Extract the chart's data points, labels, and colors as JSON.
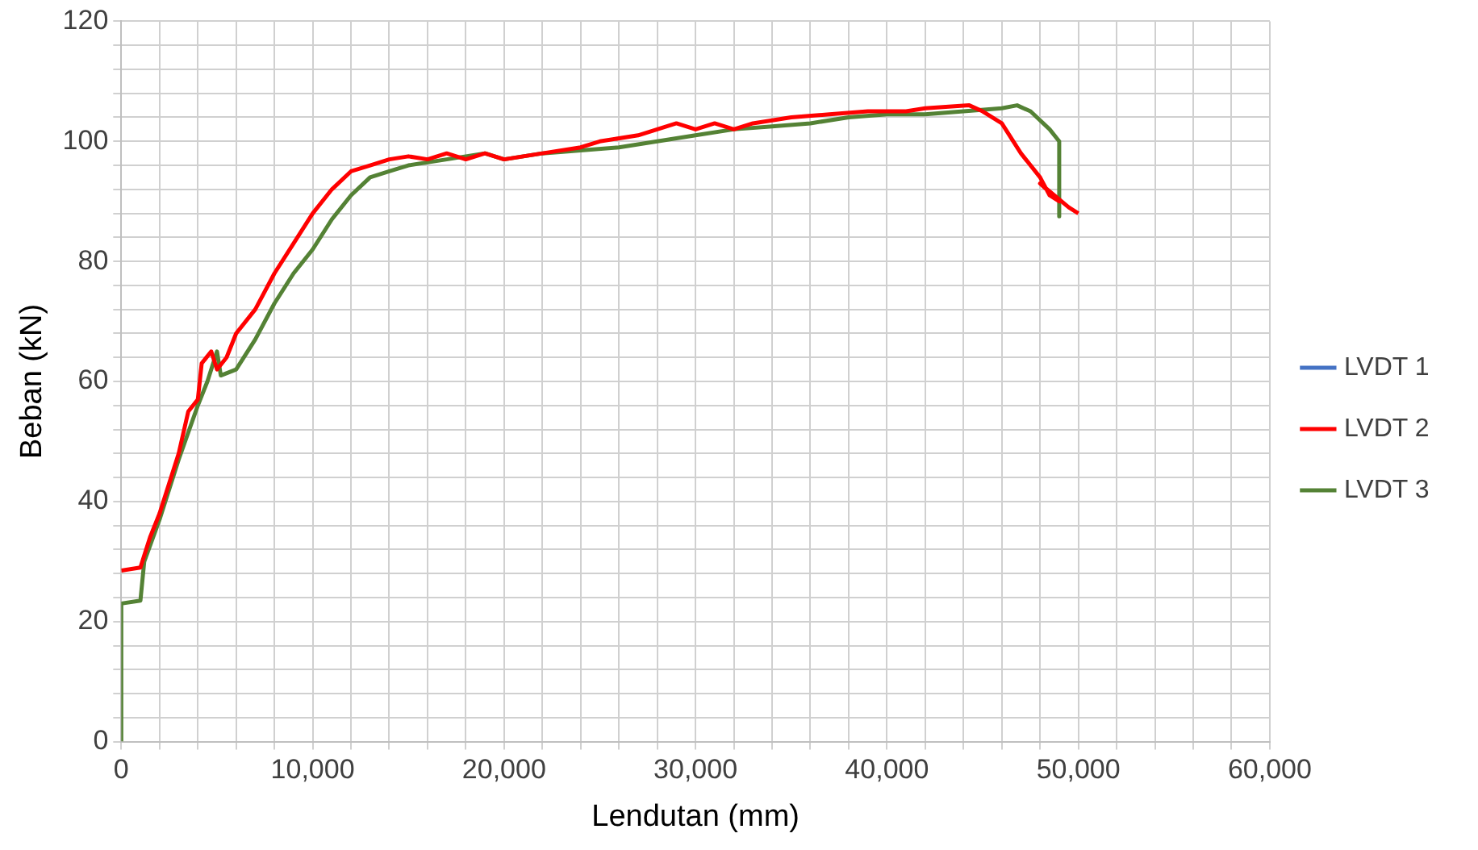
{
  "chart_data": {
    "type": "line",
    "xlabel": "Lendutan (mm)",
    "ylabel": "Beban (kN)",
    "xlim": [
      0,
      60000
    ],
    "ylim": [
      0,
      120
    ],
    "xticks": [
      {
        "value": 0,
        "label": "0"
      },
      {
        "value": 2000,
        "label": null
      },
      {
        "value": 4000,
        "label": null
      },
      {
        "value": 6000,
        "label": null
      },
      {
        "value": 8000,
        "label": null
      },
      {
        "value": 10000,
        "label": "10,000"
      },
      {
        "value": 12000,
        "label": null
      },
      {
        "value": 14000,
        "label": null
      },
      {
        "value": 16000,
        "label": null
      },
      {
        "value": 18000,
        "label": null
      },
      {
        "value": 20000,
        "label": "20,000"
      },
      {
        "value": 22000,
        "label": null
      },
      {
        "value": 24000,
        "label": null
      },
      {
        "value": 26000,
        "label": null
      },
      {
        "value": 28000,
        "label": null
      },
      {
        "value": 30000,
        "label": "30,000"
      },
      {
        "value": 32000,
        "label": null
      },
      {
        "value": 34000,
        "label": null
      },
      {
        "value": 36000,
        "label": null
      },
      {
        "value": 38000,
        "label": null
      },
      {
        "value": 40000,
        "label": "40,000"
      },
      {
        "value": 42000,
        "label": null
      },
      {
        "value": 44000,
        "label": null
      },
      {
        "value": 46000,
        "label": null
      },
      {
        "value": 48000,
        "label": null
      },
      {
        "value": 50000,
        "label": "50,000"
      },
      {
        "value": 52000,
        "label": null
      },
      {
        "value": 54000,
        "label": null
      },
      {
        "value": 56000,
        "label": null
      },
      {
        "value": 58000,
        "label": null
      },
      {
        "value": 60000,
        "label": "60,000"
      }
    ],
    "yticks": [
      0,
      {
        "value": 4,
        "label": null
      },
      {
        "value": 8,
        "label": null
      },
      {
        "value": 12,
        "label": null
      },
      {
        "value": 16,
        "label": null
      },
      20,
      {
        "value": 24,
        "label": null
      },
      {
        "value": 28,
        "label": null
      },
      {
        "value": 32,
        "label": null
      },
      {
        "value": 36,
        "label": null
      },
      40,
      {
        "value": 44,
        "label": null
      },
      {
        "value": 48,
        "label": null
      },
      {
        "value": 52,
        "label": null
      },
      {
        "value": 56,
        "label": null
      },
      60,
      {
        "value": 64,
        "label": null
      },
      {
        "value": 68,
        "label": null
      },
      {
        "value": 72,
        "label": null
      },
      {
        "value": 76,
        "label": null
      },
      80,
      {
        "value": 84,
        "label": null
      },
      {
        "value": 88,
        "label": null
      },
      {
        "value": 92,
        "label": null
      },
      {
        "value": 96,
        "label": null
      },
      100,
      {
        "value": 104,
        "label": null
      },
      {
        "value": 108,
        "label": null
      },
      {
        "value": 112,
        "label": null
      },
      {
        "value": 116,
        "label": null
      },
      120
    ],
    "grid": true,
    "legend": "right",
    "marker": "none",
    "line_style": "solid",
    "series": [
      {
        "name": "LVDT 1",
        "color": "#4472c4"
      },
      {
        "name": "LVDT 2",
        "color": "#ff0000",
        "x": [
          0,
          1000,
          1200,
          1500,
          2000,
          2500,
          3000,
          3500,
          4000,
          4200,
          4700,
          5000,
          5500,
          6000,
          7000,
          8000,
          9000,
          10000,
          11000,
          12000,
          13000,
          14000,
          15000,
          16000,
          17000,
          18000,
          19000,
          20000,
          22000,
          24000,
          25000,
          27000,
          28000,
          29000,
          30000,
          31000,
          32000,
          33000,
          35000,
          37000,
          39000,
          41000,
          42000,
          44300,
          45000,
          46000,
          47000,
          48000,
          48500,
          49000,
          48000,
          49500,
          50000
        ],
        "values": [
          28.5,
          29,
          31,
          34,
          38,
          43,
          48,
          55,
          57,
          63,
          65,
          62,
          64,
          68,
          72,
          78,
          83,
          88,
          92,
          95,
          96,
          97,
          97.5,
          97,
          98,
          97,
          98,
          97,
          98,
          99,
          100,
          101,
          102,
          103,
          102,
          103,
          102,
          103,
          104,
          104.5,
          105,
          105,
          105.5,
          106,
          105,
          103,
          98,
          94,
          91,
          90,
          93,
          89,
          88
        ]
      },
      {
        "name": "LVDT 3",
        "color": "#548235",
        "x": [
          0,
          0,
          1000,
          1200,
          2000,
          3000,
          4000,
          4500,
          5000,
          5200,
          6000,
          7000,
          8000,
          9000,
          10000,
          11000,
          12000,
          13000,
          14000,
          15000,
          17000,
          19000,
          20000,
          22000,
          24000,
          26000,
          28000,
          30000,
          32000,
          34000,
          36000,
          38000,
          40000,
          42000,
          44000,
          46000,
          46800,
          47500,
          48500,
          49000,
          49000
        ],
        "values": [
          0,
          23,
          23.5,
          30,
          37,
          47,
          56,
          60,
          65,
          61,
          62,
          67,
          73,
          78,
          82,
          87,
          91,
          94,
          95,
          96,
          97,
          98,
          97,
          98,
          98.5,
          99,
          100,
          101,
          102,
          102.5,
          103,
          104,
          104.5,
          104.5,
          105,
          105.5,
          106,
          105,
          102,
          100,
          87.5
        ]
      }
    ]
  }
}
